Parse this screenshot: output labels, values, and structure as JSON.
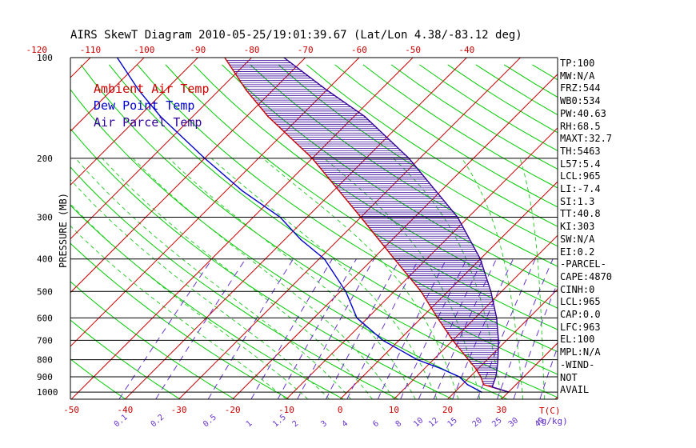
{
  "title": "AIRS SkewT Diagram 2010-05-25/19:01:39.67 (Lat/Lon 4.38/-83.12 deg)",
  "colors": {
    "ambient": "#cc0000",
    "dewpoint": "#0000cc",
    "parcel": "#330099",
    "isotherm": "#cc0000",
    "dry_adiabat": "#00cc00",
    "moist_adiabat": "#33cc33",
    "mixing_ratio": "#6633cc",
    "isobar": "#000000",
    "hatch": "#330099"
  },
  "legend": [
    {
      "label": "Ambient Air Temp",
      "color": "#cc0000"
    },
    {
      "label": "Dew Point Temp",
      "color": "#0000cc"
    },
    {
      "label": "Air Parcel Temp",
      "color": "#330099"
    }
  ],
  "indices": [
    "TP:100",
    "MW:N/A",
    "FRZ:544",
    "WB0:534",
    "PW:40.63",
    "RH:68.5",
    "MAXT:32.7",
    "TH:5463",
    "L57:5.4",
    "LCL:965",
    "LI:-7.4",
    "SI:1.3",
    "TT:40.8",
    "KI:303",
    "SW:N/A",
    "EI:0.2",
    "-PARCEL-",
    "CAPE:4870",
    "CINH:0",
    "LCL:965",
    "CAP:0.0",
    "LFC:963",
    "EL:100",
    "MPL:N/A",
    "-WIND-",
    "NOT",
    "AVAIL"
  ],
  "chart_data": {
    "type": "line",
    "chart_kind": "skew-T log-p",
    "ylabel": "PRESSURE (MB)",
    "y_scale": "log",
    "ylim": [
      1050,
      100
    ],
    "pressure_ticks": [
      100,
      200,
      300,
      400,
      500,
      600,
      700,
      800,
      900,
      1000
    ],
    "bottom_temp_ticks": [
      -50,
      -40,
      -30,
      -20,
      -10,
      0,
      10,
      20,
      30
    ],
    "top_temp_ticks": [
      -120,
      -110,
      -100,
      -90,
      -80,
      -70,
      -60,
      -50,
      -40
    ],
    "mixing_ratio_ticks": [
      "0.1",
      "0.2",
      "0.5",
      "1",
      "1.5",
      "2",
      "3",
      "4",
      "6",
      "8",
      "10",
      "12",
      "15",
      "20",
      "25",
      "30",
      "40"
    ],
    "temp_axis_label": "T(C)",
    "mixing_axis_label": "(g/kg)",
    "series": [
      {
        "name": "Ambient Air Temp",
        "points": [
          [
            1000,
            30
          ],
          [
            950,
            24
          ],
          [
            900,
            22
          ],
          [
            850,
            19.5
          ],
          [
            800,
            16.5
          ],
          [
            700,
            10
          ],
          [
            600,
            3
          ],
          [
            500,
            -5
          ],
          [
            400,
            -16
          ],
          [
            300,
            -30
          ],
          [
            250,
            -39
          ],
          [
            200,
            -50
          ],
          [
            150,
            -66
          ],
          [
            125,
            -75
          ],
          [
            100,
            -85
          ]
        ]
      },
      {
        "name": "Dew Point Temp",
        "points": [
          [
            1000,
            25
          ],
          [
            950,
            21
          ],
          [
            900,
            18
          ],
          [
            850,
            13
          ],
          [
            800,
            7
          ],
          [
            700,
            -3
          ],
          [
            600,
            -12
          ],
          [
            500,
            -19
          ],
          [
            400,
            -29
          ],
          [
            350,
            -37
          ],
          [
            300,
            -45
          ],
          [
            250,
            -57
          ],
          [
            200,
            -70
          ],
          [
            150,
            -86
          ],
          [
            125,
            -95
          ],
          [
            100,
            -105
          ]
        ]
      },
      {
        "name": "Air Parcel Temp",
        "points": [
          [
            1000,
            30
          ],
          [
            965,
            26
          ],
          [
            900,
            24.8
          ],
          [
            850,
            23.5
          ],
          [
            800,
            22
          ],
          [
            700,
            18.5
          ],
          [
            600,
            14
          ],
          [
            500,
            8
          ],
          [
            400,
            0
          ],
          [
            300,
            -12
          ],
          [
            250,
            -21
          ],
          [
            200,
            -32
          ],
          [
            150,
            -48
          ],
          [
            125,
            -60
          ],
          [
            100,
            -74
          ]
        ]
      }
    ],
    "grid": true
  }
}
